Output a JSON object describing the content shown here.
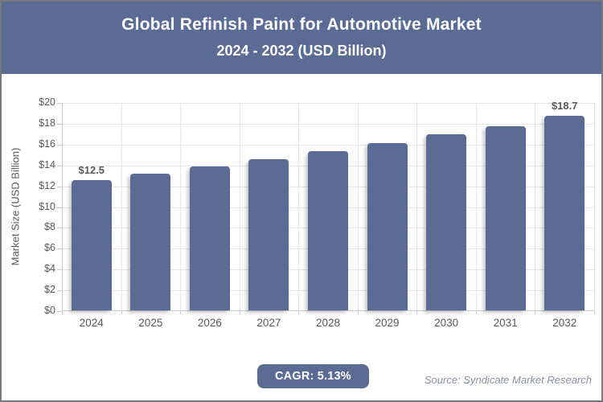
{
  "header": {
    "title_line1": "Global Refinish Paint for Automotive Market",
    "title_line2": "2024 - 2032 (USD Billion)",
    "bg_color": "#5a6b94",
    "text_color": "#ffffff"
  },
  "chart_data": {
    "type": "bar",
    "title": "Global Refinish Paint for Automotive Market 2024 - 2032 (USD Billion)",
    "categories": [
      "2024",
      "2025",
      "2026",
      "2027",
      "2028",
      "2029",
      "2030",
      "2031",
      "2032"
    ],
    "values": [
      12.5,
      13.1,
      13.8,
      14.5,
      15.3,
      16.1,
      16.9,
      17.7,
      18.7
    ],
    "value_labels": [
      "$12.5",
      "",
      "",
      "",
      "",
      "",
      "",
      "",
      "$18.7"
    ],
    "xlabel": "",
    "ylabel": "Market Size (USD Billion)",
    "ylim": [
      0,
      20
    ],
    "yticks": [
      {
        "value": 0,
        "label": "$0"
      },
      {
        "value": 2,
        "label": "$2"
      },
      {
        "value": 4,
        "label": "$4"
      },
      {
        "value": 6,
        "label": "$6"
      },
      {
        "value": 8,
        "label": "$8"
      },
      {
        "value": 10,
        "label": "$10"
      },
      {
        "value": 12,
        "label": "$12"
      },
      {
        "value": 14,
        "label": "$14"
      },
      {
        "value": 16,
        "label": "$16"
      },
      {
        "value": 18,
        "label": "$18"
      },
      {
        "value": 20,
        "label": "$20"
      }
    ],
    "grid": true,
    "legend": false,
    "bar_color": "#5a6b94"
  },
  "footer": {
    "cagr_label": "CAGR: 5.13%",
    "source": "Source: Syndicate Market Research"
  },
  "colors": {
    "accent": "#5a6b94",
    "gridline": "#e6e6e6",
    "axis": "#c9c9c9",
    "axis_text": "#595959",
    "source_text": "#8b93a1"
  }
}
